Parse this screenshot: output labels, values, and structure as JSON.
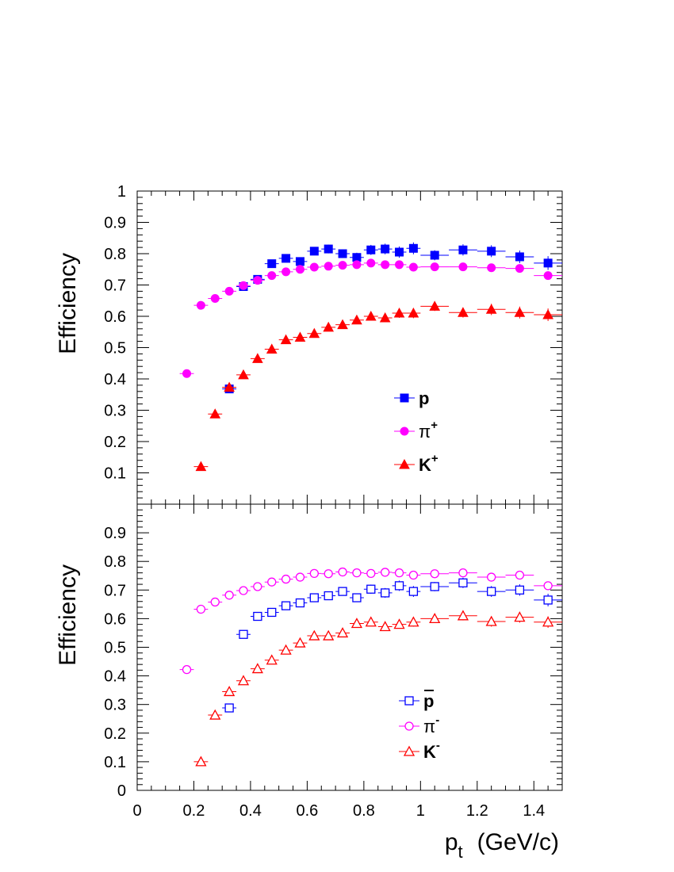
{
  "chart_data": [
    {
      "type": "scatter",
      "panel": "top",
      "ylabel": "Efficiency",
      "xlim": [
        0,
        1.5
      ],
      "ylim": [
        0,
        1
      ],
      "yticks": [
        "0.1",
        "0.2",
        "0.3",
        "0.4",
        "0.5",
        "0.6",
        "0.7",
        "0.8",
        "0.9",
        "1"
      ],
      "legend_placement": "center-right",
      "series": [
        {
          "name": "p",
          "legend_main": "p",
          "legend_sup": "",
          "legend_bar": false,
          "marker": "square",
          "filled": true,
          "color": "#0000ff",
          "x": [
            0.325,
            0.375,
            0.425,
            0.475,
            0.525,
            0.575,
            0.625,
            0.675,
            0.725,
            0.775,
            0.825,
            0.875,
            0.925,
            0.975,
            1.05,
            1.15,
            1.25,
            1.35,
            1.45
          ],
          "y": [
            0.368,
            0.695,
            0.718,
            0.768,
            0.785,
            0.775,
            0.808,
            0.815,
            0.8,
            0.788,
            0.812,
            0.815,
            0.805,
            0.817,
            0.795,
            0.812,
            0.808,
            0.79,
            0.77
          ],
          "xerr": [
            0.025,
            0.025,
            0.025,
            0.025,
            0.025,
            0.025,
            0.025,
            0.025,
            0.025,
            0.025,
            0.025,
            0.025,
            0.025,
            0.025,
            0.05,
            0.05,
            0.05,
            0.05,
            0.05
          ],
          "yerr": [
            0.01,
            0.01,
            0.01,
            0.012,
            0.012,
            0.012,
            0.013,
            0.014,
            0.014,
            0.015,
            0.016,
            0.017,
            0.018,
            0.019,
            0.016,
            0.018,
            0.019,
            0.02,
            0.022
          ]
        },
        {
          "name": "π+",
          "legend_main": "π",
          "legend_sup": "+",
          "legend_bar": false,
          "marker": "circle",
          "filled": true,
          "color": "#ff00ff",
          "x": [
            0.175,
            0.225,
            0.275,
            0.325,
            0.375,
            0.425,
            0.475,
            0.525,
            0.575,
            0.625,
            0.675,
            0.725,
            0.775,
            0.825,
            0.875,
            0.925,
            0.975,
            1.05,
            1.15,
            1.25,
            1.35,
            1.45
          ],
          "y": [
            0.417,
            0.635,
            0.657,
            0.68,
            0.698,
            0.715,
            0.73,
            0.742,
            0.75,
            0.757,
            0.76,
            0.763,
            0.765,
            0.77,
            0.765,
            0.765,
            0.757,
            0.758,
            0.758,
            0.755,
            0.753,
            0.73
          ],
          "xerr": [
            0.025,
            0.025,
            0.025,
            0.025,
            0.025,
            0.025,
            0.025,
            0.025,
            0.025,
            0.025,
            0.025,
            0.025,
            0.025,
            0.025,
            0.025,
            0.025,
            0.025,
            0.05,
            0.05,
            0.05,
            0.05,
            0.05
          ],
          "yerr": [
            0.005,
            0.005,
            0.005,
            0.005,
            0.005,
            0.005,
            0.005,
            0.005,
            0.005,
            0.005,
            0.005,
            0.005,
            0.005,
            0.005,
            0.006,
            0.006,
            0.006,
            0.006,
            0.007,
            0.007,
            0.008,
            0.009
          ]
        },
        {
          "name": "K+",
          "legend_main": "K",
          "legend_sup": "+",
          "legend_bar": false,
          "marker": "triangle",
          "filled": true,
          "color": "#ff0000",
          "x": [
            0.225,
            0.275,
            0.325,
            0.375,
            0.425,
            0.475,
            0.525,
            0.575,
            0.625,
            0.675,
            0.725,
            0.775,
            0.825,
            0.875,
            0.925,
            0.975,
            1.05,
            1.15,
            1.25,
            1.35,
            1.45
          ],
          "y": [
            0.12,
            0.288,
            0.373,
            0.413,
            0.465,
            0.495,
            0.525,
            0.533,
            0.545,
            0.565,
            0.573,
            0.588,
            0.6,
            0.595,
            0.61,
            0.61,
            0.632,
            0.612,
            0.622,
            0.612,
            0.605
          ],
          "xerr": [
            0.025,
            0.025,
            0.025,
            0.025,
            0.025,
            0.025,
            0.025,
            0.025,
            0.025,
            0.025,
            0.025,
            0.025,
            0.025,
            0.025,
            0.025,
            0.025,
            0.05,
            0.05,
            0.05,
            0.05,
            0.05
          ],
          "yerr": [
            0.006,
            0.006,
            0.007,
            0.008,
            0.008,
            0.009,
            0.01,
            0.011,
            0.011,
            0.012,
            0.012,
            0.013,
            0.014,
            0.014,
            0.015,
            0.016,
            0.015,
            0.016,
            0.018,
            0.019,
            0.02
          ]
        }
      ]
    },
    {
      "type": "scatter",
      "panel": "bottom",
      "ylabel": "Efficiency",
      "xlabel_main": "p",
      "xlabel_sub": "t",
      "xlabel_unit": "(GeV/c)",
      "xlim": [
        0,
        1.5
      ],
      "ylim": [
        0,
        1
      ],
      "xticks": [
        "0",
        "0.2",
        "0.4",
        "0.6",
        "0.8",
        "1",
        "1.2",
        "1.4"
      ],
      "yticks": [
        "0",
        "0.1",
        "0.2",
        "0.3",
        "0.4",
        "0.5",
        "0.6",
        "0.7",
        "0.8",
        "0.9"
      ],
      "legend_placement": "center-right",
      "series": [
        {
          "name": "p̄",
          "legend_main": "p",
          "legend_sup": "",
          "legend_bar": true,
          "marker": "square",
          "filled": false,
          "color": "#0000ff",
          "x": [
            0.325,
            0.375,
            0.425,
            0.475,
            0.525,
            0.575,
            0.625,
            0.675,
            0.725,
            0.775,
            0.825,
            0.875,
            0.925,
            0.975,
            1.05,
            1.15,
            1.25,
            1.35,
            1.45
          ],
          "y": [
            0.288,
            0.545,
            0.608,
            0.622,
            0.645,
            0.655,
            0.673,
            0.68,
            0.695,
            0.673,
            0.703,
            0.69,
            0.715,
            0.695,
            0.712,
            0.725,
            0.695,
            0.7,
            0.665
          ],
          "xerr": [
            0.025,
            0.025,
            0.025,
            0.025,
            0.025,
            0.025,
            0.025,
            0.025,
            0.025,
            0.025,
            0.025,
            0.025,
            0.025,
            0.025,
            0.05,
            0.05,
            0.05,
            0.05,
            0.05
          ],
          "yerr": [
            0.01,
            0.01,
            0.01,
            0.012,
            0.012,
            0.012,
            0.013,
            0.014,
            0.014,
            0.015,
            0.016,
            0.017,
            0.018,
            0.019,
            0.016,
            0.018,
            0.019,
            0.02,
            0.022
          ]
        },
        {
          "name": "π-",
          "legend_main": "π",
          "legend_sup": "-",
          "legend_bar": false,
          "marker": "circle",
          "filled": false,
          "color": "#ff00ff",
          "x": [
            0.175,
            0.225,
            0.275,
            0.325,
            0.375,
            0.425,
            0.475,
            0.525,
            0.575,
            0.625,
            0.675,
            0.725,
            0.775,
            0.825,
            0.875,
            0.925,
            0.975,
            1.05,
            1.15,
            1.25,
            1.35,
            1.45
          ],
          "y": [
            0.422,
            0.633,
            0.658,
            0.682,
            0.698,
            0.712,
            0.728,
            0.738,
            0.745,
            0.758,
            0.757,
            0.763,
            0.76,
            0.758,
            0.762,
            0.76,
            0.752,
            0.757,
            0.76,
            0.745,
            0.752,
            0.715
          ],
          "xerr": [
            0.025,
            0.025,
            0.025,
            0.025,
            0.025,
            0.025,
            0.025,
            0.025,
            0.025,
            0.025,
            0.025,
            0.025,
            0.025,
            0.025,
            0.025,
            0.025,
            0.025,
            0.05,
            0.05,
            0.05,
            0.05,
            0.05
          ],
          "yerr": [
            0.005,
            0.005,
            0.005,
            0.005,
            0.005,
            0.005,
            0.005,
            0.005,
            0.005,
            0.005,
            0.005,
            0.005,
            0.005,
            0.005,
            0.006,
            0.006,
            0.006,
            0.006,
            0.007,
            0.007,
            0.008,
            0.009
          ]
        },
        {
          "name": "K-",
          "legend_main": "K",
          "legend_sup": "-",
          "legend_bar": false,
          "marker": "triangle",
          "filled": false,
          "color": "#ff0000",
          "x": [
            0.225,
            0.275,
            0.325,
            0.375,
            0.425,
            0.475,
            0.525,
            0.575,
            0.625,
            0.675,
            0.725,
            0.775,
            0.825,
            0.875,
            0.925,
            0.975,
            1.05,
            1.15,
            1.25,
            1.35,
            1.45
          ],
          "y": [
            0.1,
            0.263,
            0.345,
            0.383,
            0.425,
            0.455,
            0.49,
            0.515,
            0.54,
            0.54,
            0.55,
            0.583,
            0.588,
            0.572,
            0.58,
            0.588,
            0.6,
            0.61,
            0.59,
            0.605,
            0.588
          ],
          "xerr": [
            0.025,
            0.025,
            0.025,
            0.025,
            0.025,
            0.025,
            0.025,
            0.025,
            0.025,
            0.025,
            0.025,
            0.025,
            0.025,
            0.025,
            0.025,
            0.025,
            0.05,
            0.05,
            0.05,
            0.05,
            0.05
          ],
          "yerr": [
            0.006,
            0.006,
            0.007,
            0.008,
            0.008,
            0.009,
            0.01,
            0.011,
            0.011,
            0.012,
            0.012,
            0.013,
            0.014,
            0.014,
            0.015,
            0.016,
            0.015,
            0.016,
            0.018,
            0.019,
            0.02
          ]
        }
      ]
    }
  ]
}
